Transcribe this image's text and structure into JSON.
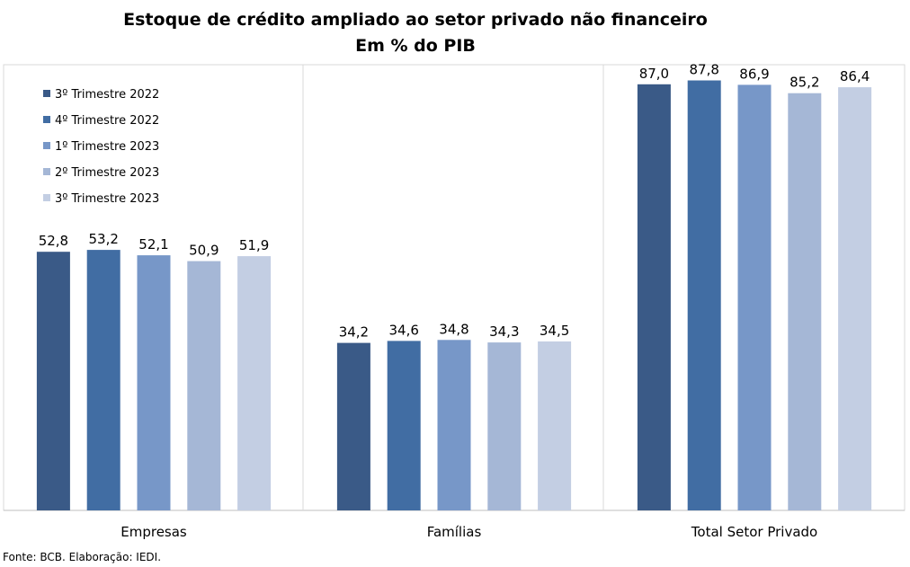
{
  "chart_data": {
    "type": "bar",
    "title": "Estoque de crédito ampliado ao setor privado não financeiro",
    "subtitle": "Em % do PIB",
    "categories": [
      "Empresas",
      "Famílias",
      "Total Setor Privado"
    ],
    "series": [
      {
        "name": "3º Trimestre 2022",
        "color": "#3a5a87",
        "values": [
          52.8,
          34.2,
          87.0
        ]
      },
      {
        "name": "4º Trimestre 2022",
        "color": "#416da3",
        "values": [
          53.2,
          34.6,
          87.8
        ]
      },
      {
        "name": "1º Trimestre 2023",
        "color": "#7797c8",
        "values": [
          52.1,
          34.8,
          86.9
        ]
      },
      {
        "name": "2º Trimestre 2023",
        "color": "#a5b7d6",
        "values": [
          50.9,
          34.3,
          85.2
        ]
      },
      {
        "name": "3º Trimestre 2023",
        "color": "#c3cee3",
        "values": [
          51.9,
          34.5,
          86.4
        ]
      }
    ],
    "data_labels": [
      [
        "52,8",
        "53,2",
        "52,1",
        "50,9",
        "51,9"
      ],
      [
        "34,2",
        "34,6",
        "34,8",
        "34,3",
        "34,5"
      ],
      [
        "87,0",
        "87,8",
        "86,9",
        "85,2",
        "86,4"
      ]
    ],
    "ylim": [
      0,
      100
    ],
    "grid": false,
    "legend": "top-left",
    "source": "Fonte: BCB. Elaboração: IEDI."
  }
}
